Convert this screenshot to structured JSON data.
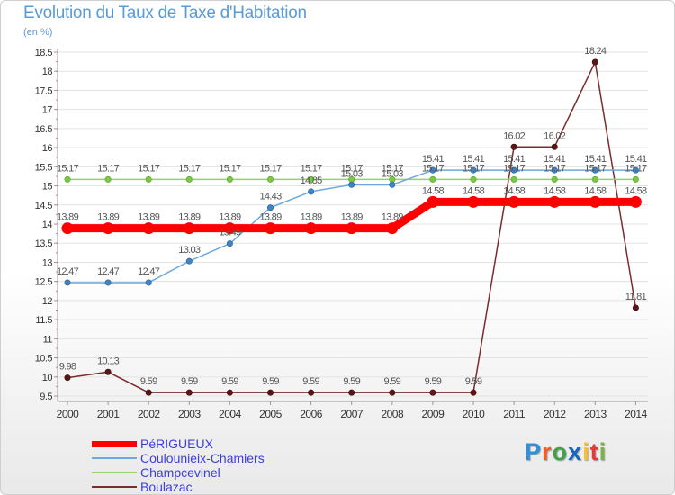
{
  "header": {
    "title": "Evolution du Taux de Taxe d'Habitation",
    "unit": "(en %)"
  },
  "logo": {
    "text": "Proxiti",
    "letter_colors": [
      "#2f8fd8",
      "#e8622b",
      "#43a047",
      "#1565c0",
      "#fbc02d",
      "#e53935",
      "#7cb342"
    ]
  },
  "colors": {
    "axis": "#999999",
    "grid": "#e3e3e3",
    "tick_text": "#333333",
    "value_text": "#555555"
  },
  "chart_data": {
    "type": "line",
    "title": "Evolution du Taux de Taxe d'Habitation",
    "ylabel": "(en %)",
    "x": [
      2000,
      2001,
      2002,
      2003,
      2004,
      2005,
      2006,
      2007,
      2008,
      2009,
      2010,
      2011,
      2012,
      2013,
      2014
    ],
    "ylim": [
      9.5,
      18.5
    ],
    "yticks": [
      9.5,
      10,
      10.5,
      11,
      11.5,
      12,
      12.5,
      13,
      13.5,
      14,
      14.5,
      15,
      15.5,
      16,
      16.5,
      17,
      17.5,
      18,
      18.5
    ],
    "grid": true,
    "legend_position": "bottom-left",
    "series": [
      {
        "name": "PéRIGUEUX",
        "color": "#ff0000",
        "marker_color": "#ff0000",
        "values": [
          13.89,
          13.89,
          13.89,
          13.89,
          13.89,
          13.89,
          13.89,
          13.89,
          13.89,
          14.58,
          14.58,
          14.58,
          14.58,
          14.58,
          14.58
        ],
        "labels": [
          "13.89",
          "13.89",
          "13.89",
          "13.89",
          "13.89",
          "13.89",
          "13.89",
          "13.89",
          "13.89",
          "14.58",
          "14.58",
          "14.58",
          "14.58",
          "14.58",
          "14.58"
        ]
      },
      {
        "name": "Coulounieix-Chamiers",
        "color": "#6fa8dc",
        "marker_color": "#3d85c6",
        "values": [
          12.47,
          12.47,
          12.47,
          13.03,
          13.49,
          14.43,
          14.85,
          15.03,
          15.03,
          15.41,
          15.41,
          15.41,
          15.41,
          15.41,
          15.41
        ],
        "labels": [
          "12.47",
          "12.47",
          "12.47",
          "13.03",
          "13.49",
          "14.43",
          "14.85",
          "15.03",
          "15.03",
          "15.41",
          "15.41",
          "15.41",
          "15.41",
          "15.41",
          "15.41"
        ]
      },
      {
        "name": "Champcevinel",
        "color": "#93d36b",
        "marker_color": "#7ac943",
        "values": [
          15.17,
          15.17,
          15.17,
          15.17,
          15.17,
          15.17,
          15.17,
          15.17,
          15.17,
          15.17,
          15.17,
          15.17,
          15.17,
          15.17,
          15.17
        ],
        "labels": [
          "15.17",
          "15.17",
          "15.17",
          "15.17",
          "15.17",
          "15.17",
          "15.17",
          "15.17",
          "15.17",
          "15.17",
          "15.17",
          "15.17",
          "15.17",
          "15.17",
          "15.17"
        ]
      },
      {
        "name": "Boulazac",
        "color": "#7b2c2c",
        "marker_color": "#5a1717",
        "values": [
          9.98,
          10.13,
          9.59,
          9.59,
          9.59,
          9.59,
          9.59,
          9.59,
          9.59,
          9.59,
          9.59,
          16.02,
          16.02,
          18.24,
          11.81
        ],
        "labels": [
          "9.98",
          "10.13",
          "9.59",
          "9.59",
          "9.59",
          "9.59",
          "9.59",
          "9.59",
          "9.59",
          "9.59",
          "9.59",
          "16.02",
          "16.02",
          "18.24",
          "11.81"
        ]
      }
    ]
  }
}
